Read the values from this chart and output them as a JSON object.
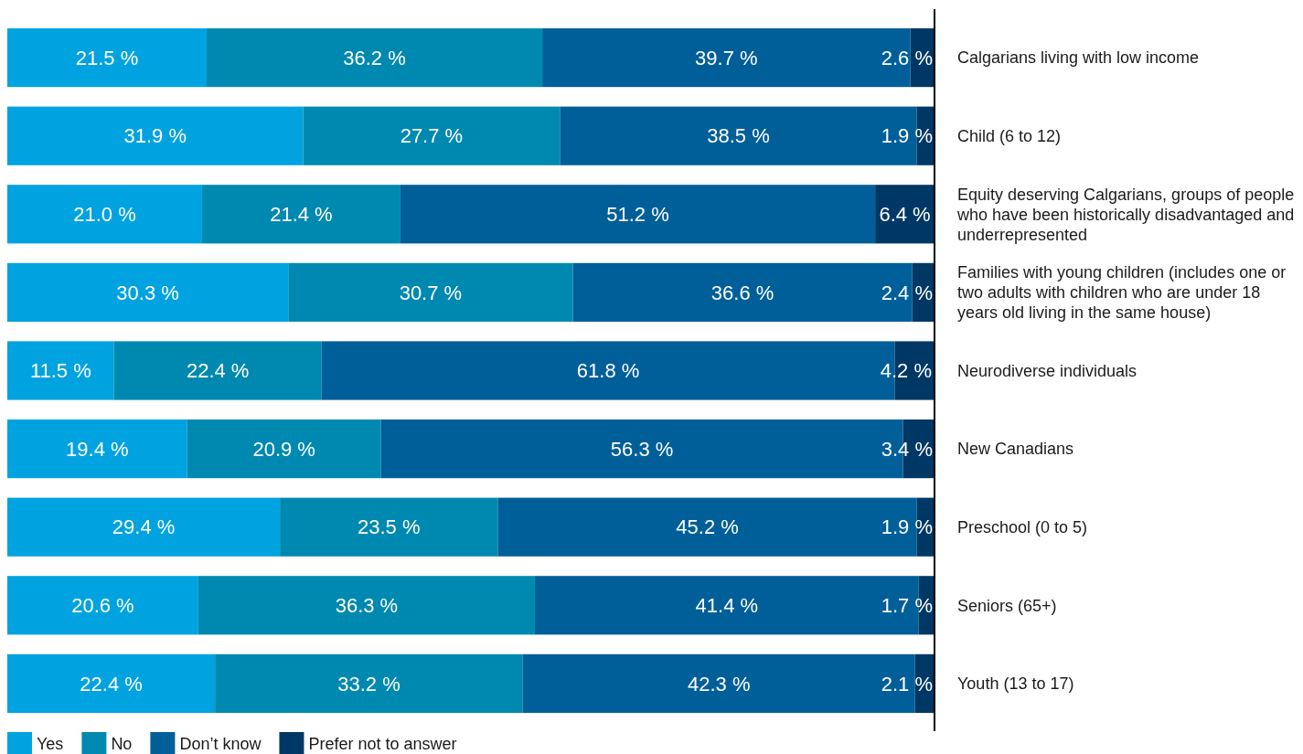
{
  "chart_data": {
    "type": "bar",
    "orientation": "horizontal",
    "stacked": true,
    "legend": "bottom left",
    "categories": [
      "Calgarians living with low income",
      "Child (6 to 12)",
      "Equity deserving Calgarians, groups of people who have been historically disadvantaged and underrepresented",
      "Families with young children (includes one or two adults with children who are under 18 years old living in the same house)",
      "Neurodiverse individuals",
      "New Canadians",
      "Preschool (0 to 5)",
      "Seniors (65+)",
      "Youth (13 to 17)"
    ],
    "series": [
      {
        "name": "Yes",
        "color": "#00a3e0",
        "values": [
          21.5,
          31.9,
          21.0,
          30.3,
          11.5,
          19.4,
          29.4,
          20.6,
          22.4
        ],
        "value_labels": [
          "21.5 %",
          "31.9 %",
          "21.0 %",
          "30.3 %",
          "11.5 %",
          "19.4 %",
          "29.4 %",
          "20.6 %",
          "22.4 %"
        ]
      },
      {
        "name": "No",
        "color": "#0089b0",
        "values": [
          36.2,
          27.7,
          21.4,
          30.7,
          22.4,
          20.9,
          23.5,
          36.3,
          33.2
        ],
        "value_labels": [
          "36.2 %",
          "27.7 %",
          "21.4 %",
          "30.7 %",
          "22.4 %",
          "20.9 %",
          "23.5 %",
          "36.3 %",
          "33.2 %"
        ]
      },
      {
        "name": "Don’t know",
        "color": "#005f99",
        "values": [
          39.7,
          38.5,
          51.2,
          36.6,
          61.8,
          56.3,
          45.2,
          41.4,
          42.3
        ],
        "value_labels": [
          "39.7 %",
          "38.5 %",
          "51.2 %",
          "36.6 %",
          "61.8 %",
          "56.3 %",
          "45.2 %",
          "41.4 %",
          "42.3 %"
        ]
      },
      {
        "name": "Prefer not to answer",
        "color": "#003865",
        "values": [
          2.6,
          1.9,
          6.4,
          2.4,
          4.2,
          3.4,
          1.9,
          1.7,
          2.1
        ],
        "value_labels": [
          "2.6 %",
          "1.9 %",
          "6.4 %",
          "2.4 %",
          "4.2 %",
          "3.4 %",
          "1.9 %",
          "1.7 %",
          "2.1 %"
        ]
      }
    ]
  }
}
